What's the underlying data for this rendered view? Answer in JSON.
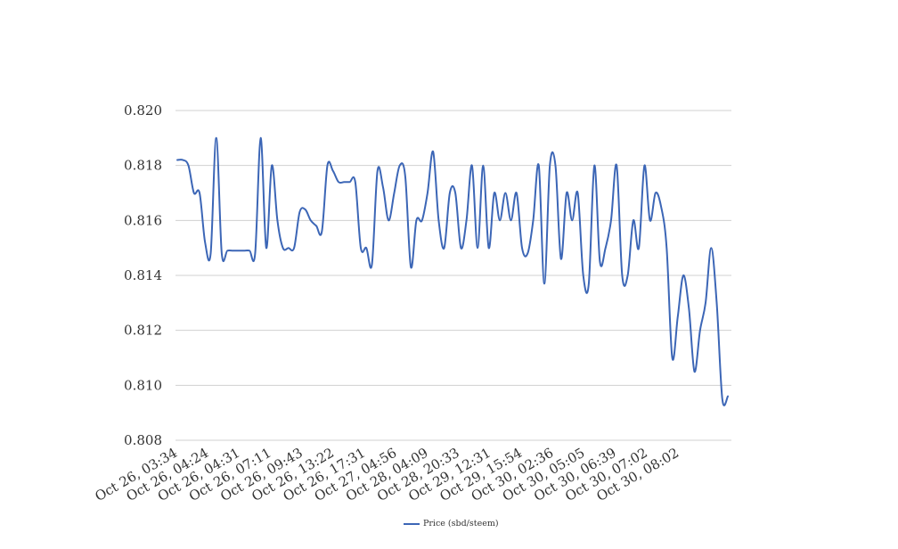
{
  "chart_data": {
    "type": "line",
    "title": "",
    "xlabel": "",
    "ylabel": "",
    "ylim": [
      0.808,
      0.82
    ],
    "yticks": [
      "0.808",
      "0.810",
      "0.812",
      "0.814",
      "0.816",
      "0.818",
      "0.820"
    ],
    "grid": true,
    "legend_position": "bottom",
    "color": "#3c66b6",
    "x_tick_labels": [
      "Oct 26, 03:34",
      "Oct 26, 04:24",
      "Oct 26, 04:31",
      "Oct 26, 07:11",
      "Oct 26, 09:43",
      "Oct 26, 13:22",
      "Oct 26, 17:31",
      "Oct 27, 04:56",
      "Oct 28, 04:09",
      "Oct 28, 20:33",
      "Oct 29, 12:31",
      "Oct 29, 15:54",
      "Oct 30, 02:36",
      "Oct 30, 05:05",
      "Oct 30, 06:39",
      "Oct 30, 07:02",
      "Oct 30, 08:02"
    ],
    "series": [
      {
        "name": "Price (sbd/steem)",
        "values": [
          0.8182,
          0.8182,
          0.818,
          0.817,
          0.817,
          0.8152,
          0.8148,
          0.819,
          0.8148,
          0.8149,
          0.8149,
          0.8149,
          0.8149,
          0.8149,
          0.8148,
          0.819,
          0.815,
          0.818,
          0.816,
          0.815,
          0.815,
          0.815,
          0.8163,
          0.8164,
          0.816,
          0.8158,
          0.8156,
          0.818,
          0.8178,
          0.8174,
          0.8174,
          0.8174,
          0.8174,
          0.815,
          0.815,
          0.8144,
          0.8178,
          0.8172,
          0.816,
          0.817,
          0.818,
          0.8176,
          0.8143,
          0.816,
          0.816,
          0.817,
          0.8185,
          0.816,
          0.815,
          0.817,
          0.817,
          0.815,
          0.816,
          0.818,
          0.815,
          0.818,
          0.815,
          0.817,
          0.816,
          0.817,
          0.816,
          0.817,
          0.815,
          0.8148,
          0.816,
          0.818,
          0.8137,
          0.818,
          0.818,
          0.8146,
          0.817,
          0.816,
          0.817,
          0.814,
          0.8137,
          0.818,
          0.8145,
          0.815,
          0.816,
          0.818,
          0.814,
          0.814,
          0.816,
          0.815,
          0.818,
          0.816,
          0.817,
          0.8165,
          0.815,
          0.811,
          0.8125,
          0.814,
          0.8128,
          0.8105,
          0.812,
          0.813,
          0.815,
          0.813,
          0.8095,
          0.8096
        ]
      }
    ]
  }
}
